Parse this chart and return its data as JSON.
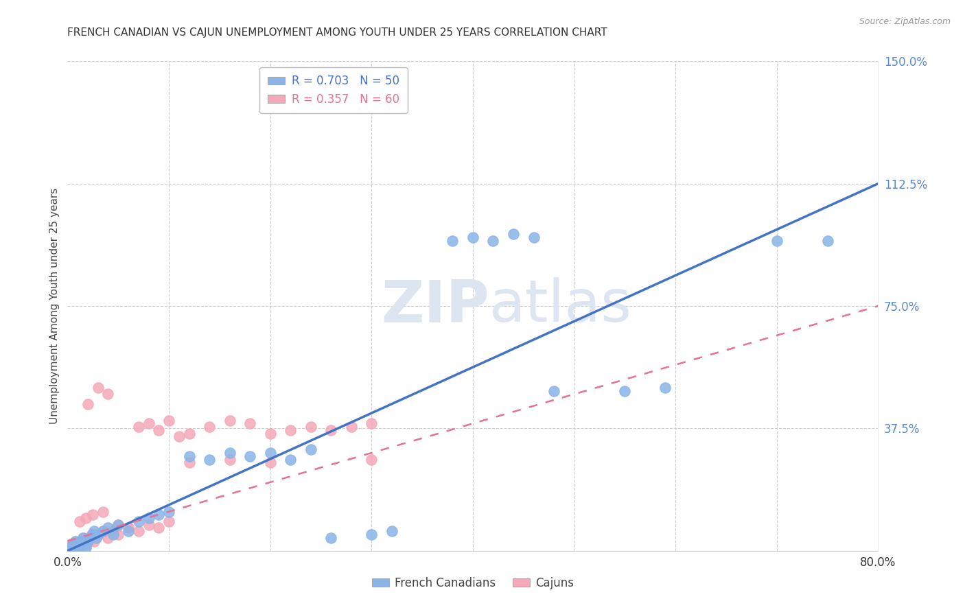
{
  "title": "FRENCH CANADIAN VS CAJUN UNEMPLOYMENT AMONG YOUTH UNDER 25 YEARS CORRELATION CHART",
  "source": "Source: ZipAtlas.com",
  "ylabel": "Unemployment Among Youth under 25 years",
  "xlim": [
    0.0,
    0.8
  ],
  "ylim": [
    0.0,
    1.5
  ],
  "x_ticks": [
    0.0,
    0.1,
    0.2,
    0.3,
    0.4,
    0.5,
    0.6,
    0.7,
    0.8
  ],
  "x_tick_labels": [
    "0.0%",
    "",
    "",
    "",
    "",
    "",
    "",
    "",
    "80.0%"
  ],
  "y_ticks_right": [
    0.0,
    0.375,
    0.75,
    1.125,
    1.5
  ],
  "y_tick_labels_right": [
    "",
    "37.5%",
    "75.0%",
    "112.5%",
    "150.0%"
  ],
  "watermark_zip": "ZIP",
  "watermark_atlas": "atlas",
  "french_canadian_color": "#8ab4e8",
  "cajun_color": "#f4a8b8",
  "french_canadian_line_color": "#4472c4",
  "cajun_line_color": "#e87090",
  "fc_line": {
    "x0": 0.0,
    "y0": 0.0,
    "x1": 0.8,
    "y1": 1.125
  },
  "cajun_line": {
    "x0": 0.0,
    "y0": 0.03,
    "x1": 0.8,
    "y1": 0.75
  },
  "fc_points_x": [
    0.003,
    0.005,
    0.007,
    0.008,
    0.009,
    0.01,
    0.011,
    0.012,
    0.013,
    0.014,
    0.015,
    0.016,
    0.017,
    0.018,
    0.019,
    0.02,
    0.022,
    0.024,
    0.026,
    0.028,
    0.03,
    0.035,
    0.04,
    0.045,
    0.05,
    0.06,
    0.07,
    0.08,
    0.09,
    0.1,
    0.12,
    0.14,
    0.16,
    0.18,
    0.2,
    0.22,
    0.24,
    0.26,
    0.3,
    0.32,
    0.38,
    0.4,
    0.42,
    0.44,
    0.46,
    0.48,
    0.55,
    0.59,
    0.7,
    0.75
  ],
  "fc_points_y": [
    0.01,
    0.02,
    0.015,
    0.03,
    0.01,
    0.02,
    0.025,
    0.01,
    0.03,
    0.02,
    0.04,
    0.02,
    0.03,
    0.01,
    0.025,
    0.03,
    0.04,
    0.05,
    0.06,
    0.04,
    0.05,
    0.06,
    0.07,
    0.05,
    0.08,
    0.06,
    0.09,
    0.1,
    0.11,
    0.12,
    0.29,
    0.28,
    0.3,
    0.29,
    0.3,
    0.28,
    0.31,
    0.04,
    0.05,
    0.06,
    0.95,
    0.96,
    0.95,
    0.97,
    0.96,
    0.49,
    0.49,
    0.5,
    0.95,
    0.95
  ],
  "cajun_points_x": [
    0.003,
    0.004,
    0.005,
    0.006,
    0.007,
    0.008,
    0.009,
    0.01,
    0.011,
    0.012,
    0.013,
    0.014,
    0.015,
    0.016,
    0.017,
    0.018,
    0.019,
    0.02,
    0.022,
    0.024,
    0.026,
    0.028,
    0.03,
    0.035,
    0.04,
    0.045,
    0.05,
    0.06,
    0.07,
    0.08,
    0.09,
    0.1,
    0.02,
    0.03,
    0.04,
    0.05,
    0.06,
    0.07,
    0.08,
    0.09,
    0.1,
    0.11,
    0.12,
    0.14,
    0.16,
    0.18,
    0.2,
    0.22,
    0.24,
    0.26,
    0.28,
    0.3,
    0.012,
    0.018,
    0.025,
    0.035,
    0.12,
    0.16,
    0.2,
    0.3
  ],
  "cajun_points_y": [
    0.02,
    0.01,
    0.015,
    0.025,
    0.02,
    0.03,
    0.01,
    0.025,
    0.02,
    0.015,
    0.03,
    0.025,
    0.04,
    0.02,
    0.03,
    0.015,
    0.025,
    0.03,
    0.04,
    0.05,
    0.03,
    0.04,
    0.05,
    0.06,
    0.04,
    0.06,
    0.05,
    0.07,
    0.06,
    0.08,
    0.07,
    0.09,
    0.45,
    0.5,
    0.48,
    0.08,
    0.07,
    0.38,
    0.39,
    0.37,
    0.4,
    0.35,
    0.36,
    0.38,
    0.4,
    0.39,
    0.36,
    0.37,
    0.38,
    0.37,
    0.38,
    0.39,
    0.09,
    0.1,
    0.11,
    0.12,
    0.27,
    0.28,
    0.27,
    0.28
  ]
}
